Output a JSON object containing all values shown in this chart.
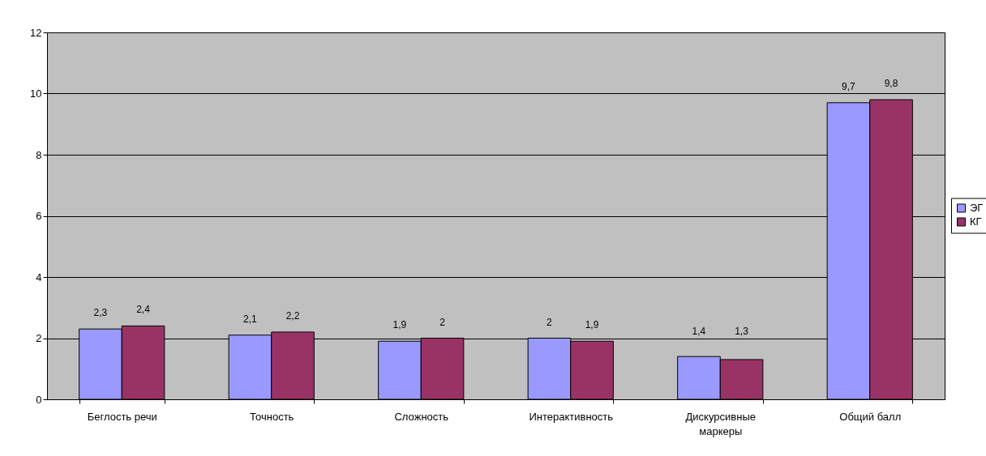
{
  "chart_data": {
    "type": "bar",
    "categories": [
      "Беглость речи",
      "Точность",
      "Сложность",
      "Интерактивность",
      "Дискурсивные маркеры",
      "Общий балл"
    ],
    "series": [
      {
        "name": "ЭГ",
        "color": "#9999ff",
        "values": [
          2.3,
          2.1,
          1.9,
          2,
          1.4,
          9.7
        ],
        "value_labels": [
          "2,3",
          "2,1",
          "1,9",
          "2",
          "1,4",
          "9,7"
        ]
      },
      {
        "name": "КГ",
        "color": "#993366",
        "values": [
          2.4,
          2.2,
          2,
          1.9,
          1.3,
          9.8
        ],
        "value_labels": [
          "2,4",
          "2,2",
          "2",
          "1,9",
          "1,3",
          "9,8"
        ]
      }
    ],
    "ylim": [
      0,
      12
    ],
    "yticks": [
      0,
      2,
      4,
      6,
      8,
      10,
      12
    ],
    "grid": "y",
    "legend": "right"
  }
}
